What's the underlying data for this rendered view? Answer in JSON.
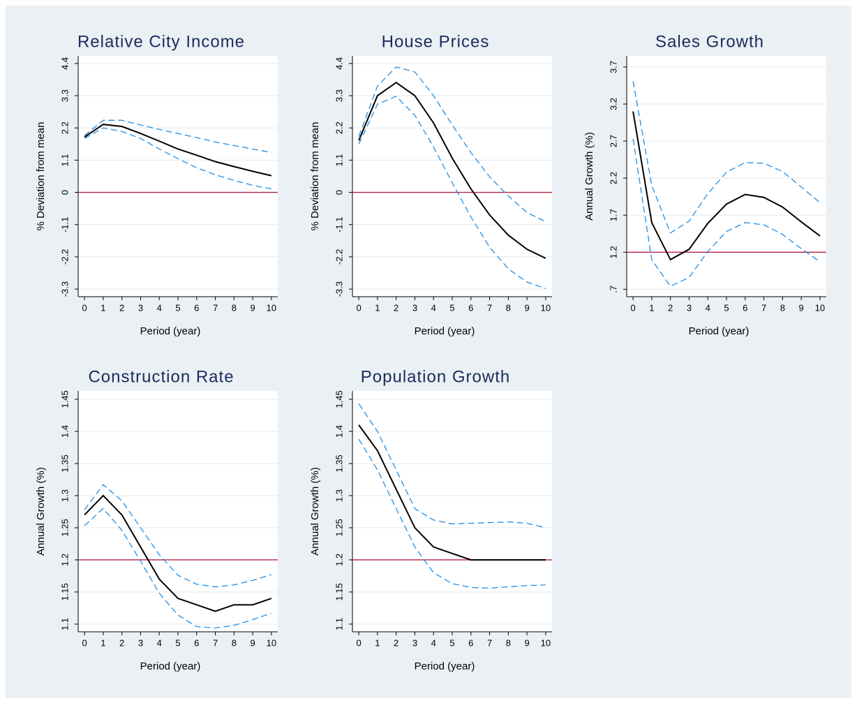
{
  "chart_data": [
    {
      "type": "line",
      "title": "Relative City Income",
      "xlabel": "Period (year)",
      "ylabel": "% Deviation from mean",
      "x": [
        0,
        1,
        2,
        3,
        4,
        5,
        6,
        7,
        8,
        9,
        10
      ],
      "xlim": [
        -0.34,
        10.34
      ],
      "xticks": [
        0,
        1,
        2,
        3,
        4,
        5,
        6,
        7,
        8,
        9,
        10
      ],
      "ylim": [
        -3.56,
        4.66
      ],
      "yticks": [
        -3.3,
        -2.2,
        -1.1,
        0,
        1.1,
        2.2,
        3.3,
        4.4
      ],
      "grid": true,
      "reference_line": 0,
      "reference_color": "#b0204a",
      "series": [
        {
          "color": "#000000",
          "dashed": false,
          "values": [
            1.89,
            2.32,
            2.25,
            2.01,
            1.75,
            1.48,
            1.27,
            1.05,
            0.88,
            0.72,
            0.57
          ]
        },
        {
          "color": "#1f8ee6",
          "dashed": true,
          "values": [
            1.94,
            2.46,
            2.46,
            2.3,
            2.15,
            2.01,
            1.87,
            1.72,
            1.6,
            1.48,
            1.36
          ]
        },
        {
          "color": "#1f8ee6",
          "dashed": true,
          "values": [
            1.84,
            2.2,
            2.08,
            1.84,
            1.48,
            1.15,
            0.84,
            0.6,
            0.41,
            0.24,
            0.12
          ]
        }
      ]
    },
    {
      "type": "line",
      "title": "House Prices",
      "xlabel": "Period (year)",
      "ylabel": "% Deviation from mean",
      "x": [
        0,
        1,
        2,
        3,
        4,
        5,
        6,
        7,
        8,
        9,
        10
      ],
      "xlim": [
        -0.34,
        10.34
      ],
      "xticks": [
        0,
        1,
        2,
        3,
        4,
        5,
        6,
        7,
        8,
        9,
        10
      ],
      "ylim": [
        -3.56,
        4.66
      ],
      "yticks": [
        -3.3,
        -2.2,
        -1.1,
        0,
        1.1,
        2.2,
        3.3,
        4.4
      ],
      "grid": true,
      "reference_line": 0,
      "reference_color": "#b0204a",
      "series": [
        {
          "color": "#000000",
          "dashed": false,
          "values": [
            1.77,
            3.3,
            3.75,
            3.3,
            2.37,
            1.17,
            0.12,
            -0.77,
            -1.46,
            -1.94,
            -2.25
          ]
        },
        {
          "color": "#1f8ee6",
          "dashed": true,
          "values": [
            1.91,
            3.63,
            4.28,
            4.11,
            3.3,
            2.3,
            1.36,
            0.53,
            -0.12,
            -0.69,
            -1.0
          ]
        },
        {
          "color": "#1f8ee6",
          "dashed": true,
          "values": [
            1.65,
            3.01,
            3.28,
            2.63,
            1.55,
            0.33,
            -0.84,
            -1.87,
            -2.61,
            -3.06,
            -3.28
          ]
        }
      ]
    },
    {
      "type": "line",
      "title": "Sales Growth",
      "xlabel": "Period (year)",
      "ylabel": "Annual Growth (%)",
      "x": [
        0,
        1,
        2,
        3,
        4,
        5,
        6,
        7,
        8,
        9,
        10
      ],
      "xlim": [
        -0.34,
        10.34
      ],
      "xticks": [
        0,
        1,
        2,
        3,
        4,
        5,
        6,
        7,
        8,
        9,
        10
      ],
      "ylim": [
        0.6,
        3.85
      ],
      "yticks": [
        {
          "value": 0.7,
          "label": ".7"
        },
        1.2,
        1.7,
        2.2,
        2.7,
        3.2,
        3.7
      ],
      "grid": true,
      "reference_line": 1.2,
      "reference_color": "#b0204a",
      "series": [
        {
          "color": "#000000",
          "dashed": false,
          "values": [
            3.1,
            1.6,
            1.1,
            1.24,
            1.59,
            1.85,
            1.98,
            1.94,
            1.81,
            1.61,
            1.42
          ]
        },
        {
          "color": "#1f8ee6",
          "dashed": true,
          "values": [
            3.51,
            2.1,
            1.46,
            1.62,
            1.99,
            2.28,
            2.41,
            2.4,
            2.29,
            2.08,
            1.87
          ]
        },
        {
          "color": "#1f8ee6",
          "dashed": true,
          "values": [
            2.73,
            1.1,
            0.74,
            0.86,
            1.21,
            1.48,
            1.6,
            1.57,
            1.44,
            1.25,
            1.07
          ]
        }
      ]
    },
    {
      "type": "line",
      "title": "Construction Rate",
      "xlabel": "Period (year)",
      "ylabel": "Annual Growth (%)",
      "x": [
        0,
        1,
        2,
        3,
        4,
        5,
        6,
        7,
        8,
        9,
        10
      ],
      "xlim": [
        -0.34,
        10.34
      ],
      "xticks": [
        0,
        1,
        2,
        3,
        4,
        5,
        6,
        7,
        8,
        9,
        10
      ],
      "ylim": [
        1.088,
        1.463
      ],
      "yticks": [
        1.1,
        1.15,
        1.2,
        1.25,
        1.3,
        1.35,
        1.4,
        1.45
      ],
      "grid": true,
      "reference_line": 1.2,
      "reference_color": "#b0204a",
      "series": [
        {
          "color": "#000000",
          "dashed": false,
          "values": [
            1.27,
            1.3,
            1.27,
            1.22,
            1.17,
            1.14,
            1.13,
            1.12,
            1.13,
            1.13,
            1.14
          ]
        },
        {
          "color": "#1f8ee6",
          "dashed": true,
          "values": [
            1.278,
            1.317,
            1.292,
            1.25,
            1.208,
            1.176,
            1.162,
            1.158,
            1.161,
            1.168,
            1.177
          ]
        },
        {
          "color": "#1f8ee6",
          "dashed": true,
          "values": [
            1.253,
            1.28,
            1.246,
            1.198,
            1.148,
            1.114,
            1.096,
            1.094,
            1.098,
            1.107,
            1.117
          ]
        }
      ]
    },
    {
      "type": "line",
      "title": "Population Growth",
      "xlabel": "Period (year)",
      "ylabel": "Annual Growth (%)",
      "x": [
        0,
        1,
        2,
        3,
        4,
        5,
        6,
        7,
        8,
        9,
        10
      ],
      "xlim": [
        -0.34,
        10.34
      ],
      "xticks": [
        0,
        1,
        2,
        3,
        4,
        5,
        6,
        7,
        8,
        9,
        10
      ],
      "ylim": [
        1.088,
        1.463
      ],
      "yticks": [
        1.1,
        1.15,
        1.2,
        1.25,
        1.3,
        1.35,
        1.4,
        1.45
      ],
      "grid": true,
      "reference_line": 1.2,
      "reference_color": "#b0204a",
      "series": [
        {
          "color": "#000000",
          "dashed": false,
          "values": [
            1.41,
            1.37,
            1.31,
            1.25,
            1.22,
            1.21,
            1.2,
            1.2,
            1.2,
            1.2,
            1.2
          ]
        },
        {
          "color": "#1f8ee6",
          "dashed": true,
          "values": [
            1.443,
            1.4,
            1.34,
            1.28,
            1.262,
            1.256,
            1.257,
            1.258,
            1.259,
            1.257,
            1.25
          ]
        },
        {
          "color": "#1f8ee6",
          "dashed": true,
          "values": [
            1.388,
            1.34,
            1.28,
            1.22,
            1.18,
            1.163,
            1.157,
            1.156,
            1.158,
            1.16,
            1.161
          ]
        }
      ]
    }
  ]
}
